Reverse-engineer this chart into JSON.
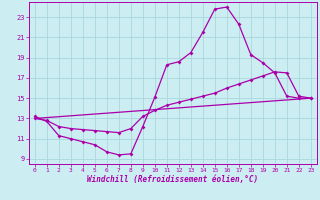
{
  "xlabel": "Windchill (Refroidissement éolien,°C)",
  "xlim": [
    -0.5,
    23.5
  ],
  "ylim": [
    8.5,
    24.5
  ],
  "xticks": [
    0,
    1,
    2,
    3,
    4,
    5,
    6,
    7,
    8,
    9,
    10,
    11,
    12,
    13,
    14,
    15,
    16,
    17,
    18,
    19,
    20,
    21,
    22,
    23
  ],
  "yticks": [
    9,
    11,
    13,
    15,
    17,
    19,
    21,
    23
  ],
  "background_color": "#cceef2",
  "grid_color": "#a8d8dc",
  "line_color": "#aa00aa",
  "lines": [
    {
      "x": [
        0,
        1,
        2,
        3,
        4,
        5,
        6,
        7,
        8,
        9,
        10,
        11,
        12,
        13,
        14,
        15,
        16,
        17,
        18,
        19,
        20,
        21,
        22,
        23
      ],
      "y": [
        13.2,
        12.7,
        11.3,
        11.0,
        10.7,
        10.4,
        9.7,
        9.4,
        9.5,
        12.2,
        15.1,
        18.3,
        18.6,
        19.5,
        21.5,
        23.8,
        24.0,
        22.3,
        19.3,
        18.5,
        17.5,
        15.2,
        15.0,
        15.0
      ]
    },
    {
      "x": [
        0,
        1,
        2,
        3,
        4,
        5,
        6,
        7,
        8,
        9,
        10,
        11,
        12,
        13,
        14,
        15,
        16,
        17,
        18,
        19,
        20,
        21,
        22,
        23
      ],
      "y": [
        13.0,
        12.8,
        12.2,
        12.0,
        11.9,
        11.8,
        11.7,
        11.6,
        12.0,
        13.2,
        13.8,
        14.3,
        14.6,
        14.9,
        15.2,
        15.5,
        16.0,
        16.4,
        16.8,
        17.2,
        17.6,
        17.5,
        15.2,
        15.0
      ]
    },
    {
      "x": [
        0,
        23
      ],
      "y": [
        13.0,
        15.0
      ]
    }
  ]
}
